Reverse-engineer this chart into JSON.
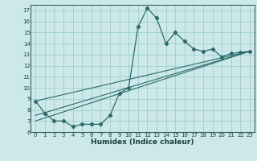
{
  "xlabel": "Humidex (Indice chaleur)",
  "background_color": "#cce8e8",
  "grid_color": "#9ecece",
  "line_color": "#2d6b6b",
  "xlim": [
    -0.5,
    23.5
  ],
  "ylim": [
    6,
    17.5
  ],
  "xticks": [
    0,
    1,
    2,
    3,
    4,
    5,
    6,
    7,
    8,
    9,
    10,
    11,
    12,
    13,
    14,
    15,
    16,
    17,
    18,
    19,
    20,
    21,
    22,
    23
  ],
  "yticks": [
    6,
    7,
    8,
    9,
    10,
    11,
    12,
    13,
    14,
    15,
    16,
    17
  ],
  "line1_x": [
    0,
    1,
    2,
    3,
    4,
    5,
    6,
    7,
    8,
    9,
    10,
    11,
    12,
    13,
    14,
    15,
    16,
    17,
    18,
    19,
    20,
    21,
    22,
    23
  ],
  "line1_y": [
    8.8,
    7.7,
    7.0,
    7.0,
    6.5,
    6.7,
    6.7,
    6.7,
    7.5,
    9.5,
    10.0,
    15.5,
    17.2,
    16.3,
    14.0,
    15.0,
    14.2,
    13.5,
    13.3,
    13.5,
    12.8,
    13.1,
    13.2,
    13.3
  ],
  "line2_x": [
    0,
    23
  ],
  "line2_y": [
    8.8,
    13.3
  ],
  "line3_x": [
    0,
    23
  ],
  "line3_y": [
    7.5,
    13.3
  ],
  "line4_x": [
    0,
    23
  ],
  "line4_y": [
    7.0,
    13.3
  ]
}
